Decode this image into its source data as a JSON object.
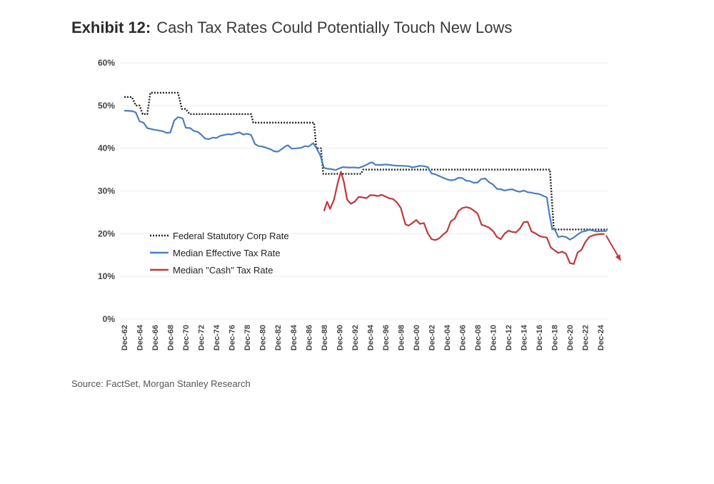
{
  "header": {
    "exhibit_label": "Exhibit 12:",
    "title": "Cash Tax Rates Could Potentially Touch New Lows"
  },
  "source": "Source: FactSet, Morgan Stanley Research",
  "chart_data": {
    "type": "line",
    "title": "Cash Tax Rates Could Potentially Touch New Lows",
    "xlabel": "",
    "ylabel": "",
    "xlim": [
      1962,
      2025
    ],
    "ylim": [
      0,
      60
    ],
    "yticks": [
      0,
      10,
      20,
      30,
      40,
      50,
      60
    ],
    "ytick_labels": [
      "0%",
      "10%",
      "20%",
      "30%",
      "40%",
      "50%",
      "60%"
    ],
    "xticks": [
      1962,
      1964,
      1966,
      1968,
      1970,
      1972,
      1974,
      1976,
      1978,
      1980,
      1982,
      1984,
      1986,
      1988,
      1990,
      1992,
      1994,
      1996,
      1998,
      2000,
      2002,
      2004,
      2006,
      2008,
      2010,
      2012,
      2014,
      2016,
      2018,
      2020,
      2022,
      2024
    ],
    "xtick_labels": [
      "Dec-62",
      "Dec-64",
      "Dec-66",
      "Dec-68",
      "Dec-70",
      "Dec-72",
      "Dec-74",
      "Dec-76",
      "Dec-78",
      "Dec-80",
      "Dec-82",
      "Dec-84",
      "Dec-86",
      "Dec-88",
      "Dec-90",
      "Dec-92",
      "Dec-94",
      "Dec-96",
      "Dec-98",
      "Dec-00",
      "Dec-02",
      "Dec-04",
      "Dec-06",
      "Dec-08",
      "Dec-10",
      "Dec-12",
      "Dec-14",
      "Dec-16",
      "Dec-18",
      "Dec-20",
      "Dec-22",
      "Dec-24"
    ],
    "grid": true,
    "legend_position": "lower-left",
    "series": [
      {
        "name": "Federal Statutory Corp Rate",
        "style": "dotted",
        "color": "#222222",
        "points": [
          [
            1962,
            52
          ],
          [
            1963,
            52
          ],
          [
            1963.5,
            50
          ],
          [
            1964,
            50
          ],
          [
            1964.4,
            48
          ],
          [
            1965,
            48
          ],
          [
            1965.4,
            53
          ],
          [
            1969,
            53
          ],
          [
            1969.5,
            49.2
          ],
          [
            1970,
            49.2
          ],
          [
            1970.5,
            48
          ],
          [
            1978.5,
            48
          ],
          [
            1978.8,
            46
          ],
          [
            1986.7,
            46
          ],
          [
            1987,
            40
          ],
          [
            1987.6,
            40
          ],
          [
            1987.9,
            34
          ],
          [
            1992.8,
            34
          ],
          [
            1993.1,
            35
          ],
          [
            2017.4,
            35
          ],
          [
            2017.9,
            21
          ],
          [
            2024.9,
            21
          ]
        ]
      },
      {
        "name": "Median Effective Tax Rate",
        "style": "solid",
        "color": "#4a7fc1",
        "points": [
          [
            1962,
            48.8
          ],
          [
            1963,
            48.7
          ],
          [
            1963.5,
            48.4
          ],
          [
            1964,
            46.3
          ],
          [
            1964.5,
            46
          ],
          [
            1965,
            44.7
          ],
          [
            1966,
            44.3
          ],
          [
            1967,
            44
          ],
          [
            1967.5,
            43.6
          ],
          [
            1968,
            43.7
          ],
          [
            1968.5,
            46.5
          ],
          [
            1969,
            47.3
          ],
          [
            1969.6,
            47
          ],
          [
            1970,
            44.8
          ],
          [
            1970.6,
            44.7
          ],
          [
            1971,
            44.1
          ],
          [
            1971.6,
            43.8
          ],
          [
            1972,
            43.2
          ],
          [
            1972.5,
            42.3
          ],
          [
            1973,
            42.1
          ],
          [
            1973.5,
            42.5
          ],
          [
            1974,
            42.4
          ],
          [
            1974.5,
            42.9
          ],
          [
            1975,
            43.1
          ],
          [
            1975.5,
            43.3
          ],
          [
            1976,
            43.2
          ],
          [
            1976.5,
            43.5
          ],
          [
            1977,
            43.7
          ],
          [
            1977.5,
            43.2
          ],
          [
            1978,
            43.4
          ],
          [
            1978.5,
            43.1
          ],
          [
            1979,
            41
          ],
          [
            1979.5,
            40.5
          ],
          [
            1980,
            40.4
          ],
          [
            1980.5,
            40.1
          ],
          [
            1981,
            39.8
          ],
          [
            1981.5,
            39.3
          ],
          [
            1982,
            39.2
          ],
          [
            1982.5,
            39.8
          ],
          [
            1983,
            40.5
          ],
          [
            1983.3,
            40.7
          ],
          [
            1983.8,
            39.9
          ],
          [
            1984.5,
            40
          ],
          [
            1985,
            40.1
          ],
          [
            1985.5,
            40.5
          ],
          [
            1986,
            40.4
          ],
          [
            1986.6,
            41.2
          ],
          [
            1987,
            40.1
          ],
          [
            1987.5,
            38.4
          ],
          [
            1988,
            35.4
          ],
          [
            1988.5,
            35.2
          ],
          [
            1989,
            35.1
          ],
          [
            1989.5,
            34.9
          ],
          [
            1990,
            35.3
          ],
          [
            1990.5,
            35.6
          ],
          [
            1991,
            35.5
          ],
          [
            1992,
            35.5
          ],
          [
            1992.5,
            35.4
          ],
          [
            1993,
            35.7
          ],
          [
            1993.5,
            36.1
          ],
          [
            1994,
            36.6
          ],
          [
            1994.3,
            36.7
          ],
          [
            1994.7,
            36.1
          ],
          [
            1995.5,
            36.1
          ],
          [
            1996,
            36.2
          ],
          [
            1996.5,
            36.1
          ],
          [
            1997,
            36
          ],
          [
            1997.5,
            35.9
          ],
          [
            1998,
            35.9
          ],
          [
            1999,
            35.8
          ],
          [
            1999.5,
            35.5
          ],
          [
            2000,
            35.7
          ],
          [
            2000.5,
            35.9
          ],
          [
            2001,
            35.8
          ],
          [
            2001.5,
            35.6
          ],
          [
            2002,
            34.1
          ],
          [
            2002.5,
            33.9
          ],
          [
            2003,
            33.5
          ],
          [
            2003.5,
            33.1
          ],
          [
            2004,
            32.7
          ],
          [
            2004.5,
            32.5
          ],
          [
            2005,
            32.6
          ],
          [
            2005.5,
            33.1
          ],
          [
            2006,
            33
          ],
          [
            2006.5,
            32.4
          ],
          [
            2007,
            32.3
          ],
          [
            2007.5,
            31.9
          ],
          [
            2008,
            32
          ],
          [
            2008.5,
            32.8
          ],
          [
            2009,
            32.9
          ],
          [
            2009.5,
            32
          ],
          [
            2010,
            31.5
          ],
          [
            2010.5,
            30.5
          ],
          [
            2011,
            30.4
          ],
          [
            2011.5,
            30.1
          ],
          [
            2012,
            30.3
          ],
          [
            2012.5,
            30.4
          ],
          [
            2013,
            30
          ],
          [
            2013.5,
            29.8
          ],
          [
            2014,
            30.1
          ],
          [
            2014.5,
            29.7
          ],
          [
            2015,
            29.6
          ],
          [
            2015.5,
            29.4
          ],
          [
            2016,
            29.3
          ],
          [
            2016.5,
            28.9
          ],
          [
            2017,
            28.5
          ],
          [
            2017.3,
            25
          ],
          [
            2017.7,
            21
          ],
          [
            2018,
            21.1
          ],
          [
            2018.5,
            19.2
          ],
          [
            2019,
            19.4
          ],
          [
            2019.5,
            19.2
          ],
          [
            2020,
            18.6
          ],
          [
            2020.5,
            19.1
          ],
          [
            2021,
            19.8
          ],
          [
            2021.5,
            20.4
          ],
          [
            2022,
            20.6
          ],
          [
            2022.5,
            20.9
          ],
          [
            2023,
            20.7
          ],
          [
            2023.5,
            20.5
          ],
          [
            2024,
            20.6
          ],
          [
            2024.8,
            20.6
          ]
        ]
      },
      {
        "name": "Median \"Cash\" Tax Rate",
        "style": "solid",
        "color": "#c0393b",
        "points": [
          [
            1988,
            25.3
          ],
          [
            1988.4,
            27.5
          ],
          [
            1988.8,
            25.8
          ],
          [
            1989.3,
            28
          ],
          [
            1989.8,
            32
          ],
          [
            1990.2,
            34.5
          ],
          [
            1990.6,
            32
          ],
          [
            1991,
            28
          ],
          [
            1991.5,
            27
          ],
          [
            1992,
            27.5
          ],
          [
            1992.5,
            28.6
          ],
          [
            1993,
            28.5
          ],
          [
            1993.5,
            28.3
          ],
          [
            1994,
            29
          ],
          [
            1994.5,
            29
          ],
          [
            1995,
            28.8
          ],
          [
            1995.5,
            29.1
          ],
          [
            1996,
            28.7
          ],
          [
            1996.5,
            28.3
          ],
          [
            1997,
            28.1
          ],
          [
            1997.5,
            27.3
          ],
          [
            1998,
            26
          ],
          [
            1998.3,
            24
          ],
          [
            1998.6,
            22.2
          ],
          [
            1999,
            21.9
          ],
          [
            1999.5,
            22.5
          ],
          [
            2000,
            23.2
          ],
          [
            2000.5,
            22.3
          ],
          [
            2001,
            22.5
          ],
          [
            2001.5,
            20.1
          ],
          [
            2002,
            18.7
          ],
          [
            2002.5,
            18.5
          ],
          [
            2003,
            18.9
          ],
          [
            2003.5,
            19.8
          ],
          [
            2004,
            20.5
          ],
          [
            2004.5,
            22.9
          ],
          [
            2005,
            23.5
          ],
          [
            2005.5,
            25.3
          ],
          [
            2006,
            26
          ],
          [
            2006.5,
            26.2
          ],
          [
            2007,
            26
          ],
          [
            2007.5,
            25.4
          ],
          [
            2008,
            24.7
          ],
          [
            2008.5,
            22.1
          ],
          [
            2009,
            21.8
          ],
          [
            2009.5,
            21.4
          ],
          [
            2010,
            20.6
          ],
          [
            2010.5,
            19.2
          ],
          [
            2011,
            18.7
          ],
          [
            2011.5,
            20
          ],
          [
            2012,
            20.7
          ],
          [
            2012.5,
            20.4
          ],
          [
            2013,
            20.3
          ],
          [
            2013.5,
            21.2
          ],
          [
            2014,
            22.7
          ],
          [
            2014.5,
            22.8
          ],
          [
            2015,
            20.5
          ],
          [
            2015.5,
            20.1
          ],
          [
            2016,
            19.5
          ],
          [
            2016.5,
            19.2
          ],
          [
            2017,
            19.1
          ],
          [
            2017.5,
            16.8
          ],
          [
            2018,
            16.1
          ],
          [
            2018.5,
            15.5
          ],
          [
            2019,
            15.8
          ],
          [
            2019.5,
            15.3
          ],
          [
            2020,
            13.1
          ],
          [
            2020.5,
            12.9
          ],
          [
            2021,
            15.6
          ],
          [
            2021.5,
            16.2
          ],
          [
            2022,
            18
          ],
          [
            2022.5,
            19.2
          ],
          [
            2023,
            19.6
          ],
          [
            2023.5,
            19.8
          ],
          [
            2024,
            19.9
          ],
          [
            2024.5,
            19.9
          ]
        ]
      }
    ],
    "annotations": [
      {
        "type": "arrow",
        "color": "#c0393b",
        "from": [
          2024.7,
          19.6
        ],
        "to": [
          2026.6,
          13.7
        ]
      }
    ]
  }
}
